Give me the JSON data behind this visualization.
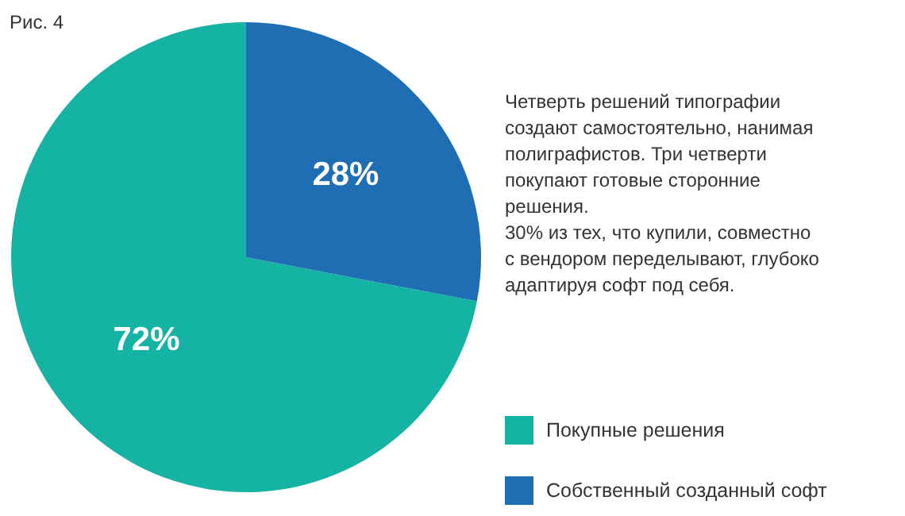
{
  "chart_data": {
    "type": "pie",
    "title": "Рис. 4",
    "categories": [
      "Покупные решения",
      "Собственный созданный софт"
    ],
    "values": [
      72,
      28
    ],
    "colors": [
      "#14b3a4",
      "#1f6db3"
    ],
    "value_labels": [
      "72%",
      "28%"
    ],
    "legend": "bottom right",
    "annotations": [
      "Четверть решений типографии\nсоздают самостоятельно, нанимая\nполиграфистов. Три четверти\nпокупают готовые сторонние\nрешения.",
      "30% из тех, что купили, совместно\nс вендором переделывают, глубоко\nадаптируя софт под себя."
    ]
  }
}
